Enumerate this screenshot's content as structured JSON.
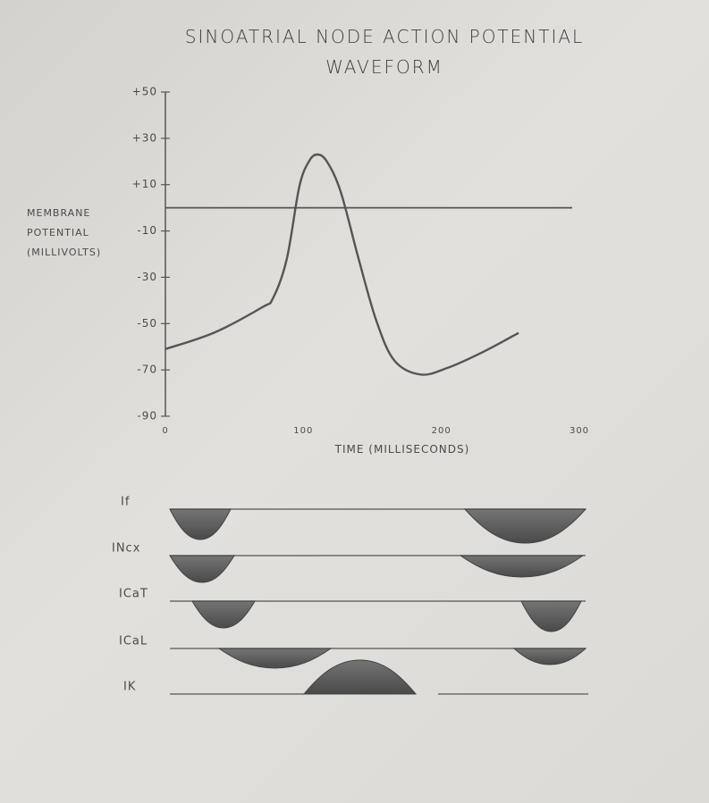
{
  "chart_data": {
    "type": "line",
    "title": "SINOATRIAL NODE ACTION POTENTIAL WAVEFORM",
    "y_label": "MEMBRANE POTENTIAL (MILLIVOLTS)",
    "x_label": "TIME (MILLISECONDS)",
    "x": [
      0,
      35,
      70,
      78,
      88,
      97,
      104,
      110,
      117,
      127,
      140,
      153,
      166,
      185,
      205,
      231,
      256
    ],
    "values": [
      -61,
      -54,
      -43,
      -39,
      -22,
      9,
      20,
      23,
      20,
      7,
      -22,
      -49,
      -66,
      -72,
      -69,
      -62,
      -54
    ],
    "color": "#555555",
    "hline": 0,
    "xlim": [
      0,
      300
    ],
    "xticks": [
      0,
      100,
      200,
      300
    ],
    "ylim": [
      -90,
      50
    ],
    "yticks": [
      {
        "value": 50,
        "label": "+50"
      },
      {
        "value": 30,
        "label": "+30"
      },
      {
        "value": 10,
        "label": "+10"
      },
      -10,
      -30,
      -50,
      -70,
      -90
    ]
  },
  "currents": [
    "If",
    "INcx",
    "ICaT",
    "ICaL",
    "IK"
  ]
}
